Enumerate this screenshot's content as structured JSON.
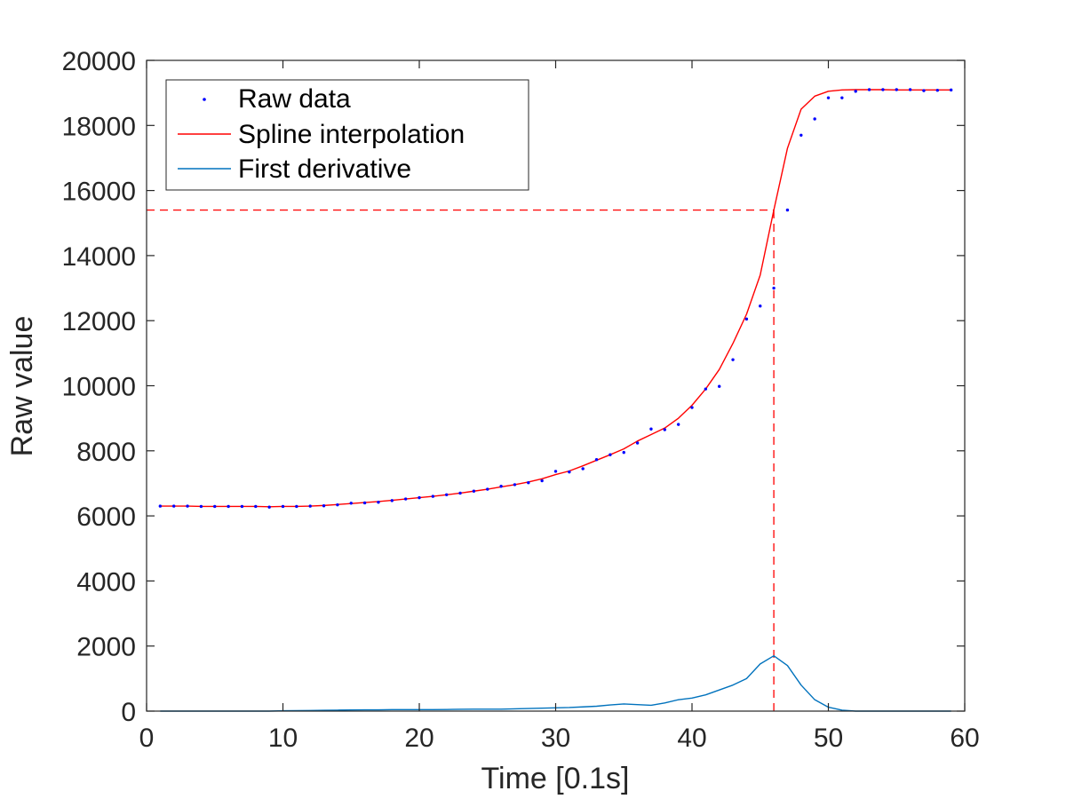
{
  "chart_data": {
    "type": "line",
    "xlabel": "Time [0.1s]",
    "ylabel": "Raw value",
    "xlim": [
      0,
      60
    ],
    "ylim": [
      0,
      20000
    ],
    "xticks": [
      0,
      10,
      20,
      30,
      40,
      50,
      60
    ],
    "yticks": [
      0,
      2000,
      4000,
      6000,
      8000,
      10000,
      12000,
      14000,
      16000,
      18000,
      20000
    ],
    "grid": false,
    "legend_position": "top-left",
    "colors": {
      "raw": "#0000ff",
      "spline": "#ff0000",
      "derivative": "#0072bd",
      "reference": "#ff0000",
      "axis": "#262626"
    },
    "series": [
      {
        "name": "Raw data",
        "style": "points",
        "x": [
          1,
          2,
          3,
          4,
          5,
          6,
          7,
          8,
          9,
          10,
          11,
          12,
          13,
          14,
          15,
          16,
          17,
          18,
          19,
          20,
          21,
          22,
          23,
          24,
          25,
          26,
          27,
          28,
          29,
          30,
          31,
          32,
          33,
          34,
          35,
          36,
          37,
          38,
          39,
          40,
          41,
          42,
          43,
          44,
          45,
          46,
          47,
          48,
          49,
          50,
          51,
          52,
          53,
          54,
          55,
          56,
          57,
          58,
          59
        ],
        "y": [
          6300,
          6300,
          6300,
          6290,
          6290,
          6290,
          6290,
          6290,
          6270,
          6290,
          6290,
          6300,
          6310,
          6340,
          6390,
          6400,
          6420,
          6470,
          6520,
          6560,
          6600,
          6650,
          6700,
          6760,
          6820,
          6910,
          6960,
          7020,
          7080,
          7370,
          7350,
          7450,
          7730,
          7880,
          7950,
          8240,
          8670,
          8650,
          8810,
          9330,
          9900,
          9980,
          10800,
          12050,
          12450,
          13000,
          15400,
          17700,
          18200,
          18850,
          18850,
          19050,
          19100,
          19100,
          19100,
          19100,
          19070,
          19080,
          19090
        ]
      },
      {
        "name": "Spline interpolation",
        "style": "line",
        "x": [
          1,
          2,
          3,
          4,
          5,
          6,
          7,
          8,
          9,
          10,
          11,
          12,
          13,
          14,
          15,
          16,
          17,
          18,
          19,
          20,
          21,
          22,
          23,
          24,
          25,
          26,
          27,
          28,
          29,
          30,
          31,
          32,
          33,
          34,
          35,
          36,
          37,
          38,
          39,
          40,
          41,
          42,
          43,
          44,
          45,
          46,
          47,
          48,
          49,
          50,
          51,
          52,
          53,
          54,
          55,
          56,
          57,
          58,
          59
        ],
        "y": [
          6300,
          6300,
          6300,
          6290,
          6290,
          6290,
          6290,
          6290,
          6280,
          6290,
          6290,
          6300,
          6320,
          6350,
          6380,
          6410,
          6440,
          6480,
          6520,
          6560,
          6600,
          6650,
          6700,
          6760,
          6820,
          6890,
          6960,
          7040,
          7140,
          7270,
          7380,
          7540,
          7710,
          7880,
          8060,
          8300,
          8500,
          8700,
          9000,
          9400,
          9900,
          10500,
          11300,
          12200,
          13400,
          15400,
          17300,
          18500,
          18900,
          19050,
          19090,
          19100,
          19100,
          19100,
          19090,
          19090,
          19090,
          19090,
          19090
        ]
      },
      {
        "name": "First derivative",
        "style": "line",
        "x": [
          1,
          2,
          3,
          4,
          5,
          6,
          7,
          8,
          9,
          10,
          11,
          12,
          13,
          14,
          15,
          16,
          17,
          18,
          19,
          20,
          21,
          22,
          23,
          24,
          25,
          26,
          27,
          28,
          29,
          30,
          31,
          32,
          33,
          34,
          35,
          36,
          37,
          38,
          39,
          40,
          41,
          42,
          43,
          44,
          45,
          46,
          47,
          48,
          49,
          50,
          51,
          52,
          53,
          54,
          55,
          56,
          57,
          58,
          59
        ],
        "y": [
          0,
          0,
          0,
          0,
          0,
          0,
          0,
          0,
          0,
          10,
          15,
          20,
          25,
          30,
          35,
          40,
          40,
          45,
          45,
          45,
          45,
          50,
          55,
          60,
          60,
          60,
          70,
          80,
          90,
          100,
          110,
          130,
          150,
          190,
          220,
          200,
          180,
          250,
          350,
          400,
          500,
          650,
          800,
          1000,
          1450,
          1700,
          1400,
          800,
          350,
          120,
          30,
          0,
          0,
          0,
          0,
          0,
          0,
          0,
          0
        ]
      }
    ],
    "reference_lines": [
      {
        "type": "horizontal",
        "y": 15400,
        "x_from": 0,
        "x_to": 46
      },
      {
        "type": "vertical",
        "x": 46,
        "y_from": 0,
        "y_to": 15400
      }
    ]
  }
}
